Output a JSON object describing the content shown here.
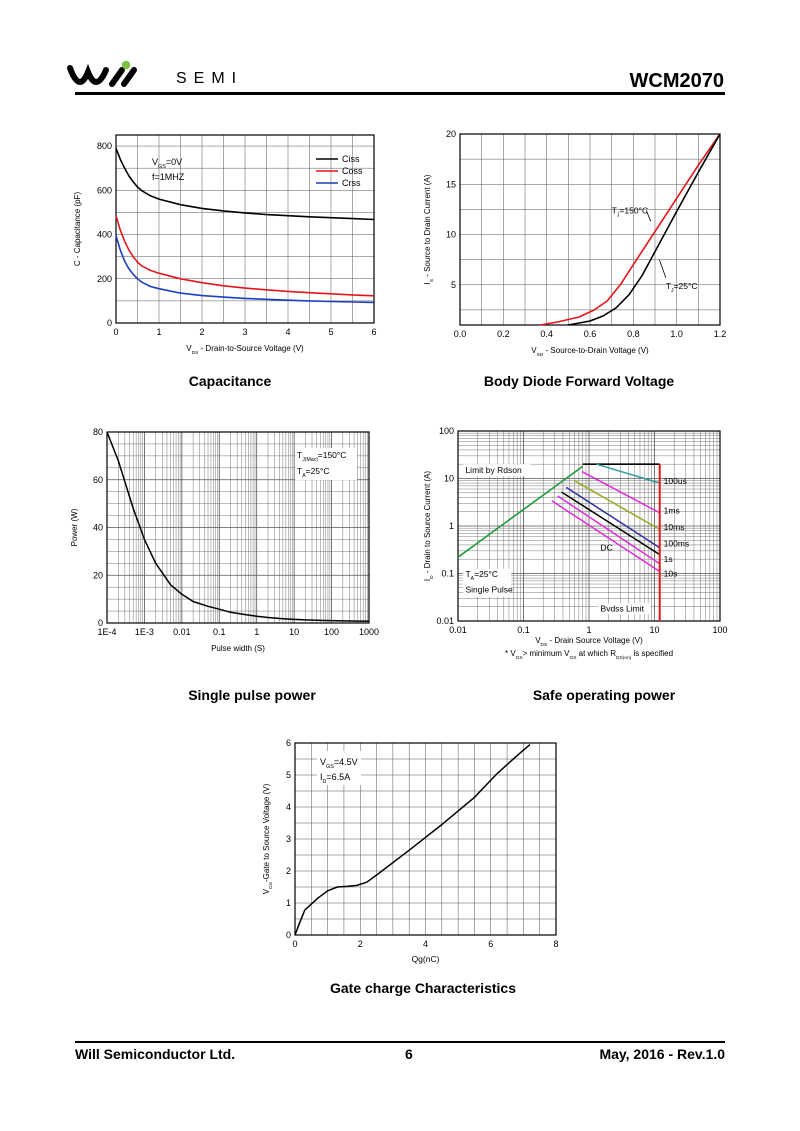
{
  "header": {
    "brand": "SEMI",
    "part_number": "WCM2070",
    "logo_color": "#7dc242"
  },
  "footer": {
    "company": "Will Semiconductor Ltd.",
    "page": "6",
    "date_rev": "May, 2016 - Rev.1.0"
  },
  "chart_data": [
    {
      "id": "capacitance",
      "type": "line",
      "title": "Capacitance",
      "xlabel": "V_DS - Drain-to-Source Voltage (V)",
      "ylabel": "C - Capacitance (pF)",
      "xlim": [
        0,
        6
      ],
      "ylim": [
        0,
        850
      ],
      "xticks": [
        0,
        1,
        2,
        3,
        4,
        5,
        6
      ],
      "yticks": [
        0,
        200,
        400,
        600,
        800
      ],
      "annotations": [
        "V_GS=0V",
        "f=1MHZ"
      ],
      "series": [
        {
          "name": "Ciss",
          "color": "#000000",
          "x": [
            0,
            0.1,
            0.2,
            0.3,
            0.4,
            0.5,
            0.6,
            0.8,
            1.0,
            1.5,
            2,
            2.5,
            3,
            3.5,
            4,
            4.5,
            5,
            5.5,
            6
          ],
          "y": [
            790,
            740,
            700,
            665,
            638,
            615,
            598,
            575,
            560,
            535,
            518,
            507,
            498,
            490,
            485,
            480,
            476,
            472,
            468
          ]
        },
        {
          "name": "Coss",
          "color": "#e4161b",
          "x": [
            0,
            0.1,
            0.2,
            0.3,
            0.4,
            0.5,
            0.6,
            0.8,
            1.0,
            1.5,
            2,
            2.5,
            3,
            3.5,
            4,
            4.5,
            5,
            5.5,
            6
          ],
          "y": [
            485,
            420,
            370,
            330,
            300,
            275,
            258,
            238,
            225,
            200,
            182,
            168,
            158,
            150,
            143,
            137,
            132,
            127,
            123
          ]
        },
        {
          "name": "Crss",
          "color": "#1c3fbd",
          "x": [
            0,
            0.1,
            0.2,
            0.3,
            0.4,
            0.5,
            0.6,
            0.8,
            1.0,
            1.5,
            2,
            2.5,
            3,
            3.5,
            4,
            4.5,
            5,
            5.5,
            6
          ],
          "y": [
            395,
            330,
            280,
            245,
            220,
            200,
            185,
            165,
            155,
            135,
            124,
            117,
            111,
            107,
            103,
            100,
            97,
            95,
            93
          ]
        }
      ]
    },
    {
      "id": "body-diode",
      "type": "line",
      "title": "Body Diode Forward Voltage",
      "xlabel": "V_SD - Source-to-Drain Voltage (V)",
      "ylabel": "I_S - Source to Drain Current (A)",
      "xlim": [
        0,
        1.2
      ],
      "ylim": [
        1,
        20
      ],
      "xticks": [
        0.0,
        0.2,
        0.4,
        0.6,
        0.8,
        1.0,
        1.2
      ],
      "yticks": [
        5,
        10,
        15,
        20
      ],
      "tick_labels_x": [
        "0.0",
        "0.2",
        "0.4",
        "0.6",
        "0.8",
        "1.0",
        "1.2"
      ],
      "series": [
        {
          "name": "T_J=150°C",
          "color": "#e4161b",
          "x": [
            0.37,
            0.45,
            0.55,
            0.62,
            0.68,
            0.74,
            0.8,
            0.9,
            1.0,
            1.1,
            1.2
          ],
          "y": [
            1.0,
            1.3,
            1.8,
            2.5,
            3.4,
            5.0,
            7.0,
            10.3,
            13.6,
            16.9,
            20.0
          ]
        },
        {
          "name": "T_J=25°C",
          "color": "#000000",
          "x": [
            0.5,
            0.6,
            0.66,
            0.72,
            0.78,
            0.84,
            0.9,
            1.0,
            1.1,
            1.2
          ],
          "y": [
            1.0,
            1.4,
            1.9,
            2.7,
            4.0,
            5.9,
            8.3,
            12.3,
            16.2,
            20.0
          ]
        }
      ]
    },
    {
      "id": "single-pulse",
      "type": "line",
      "title": "Single pulse power",
      "xlabel": "Pulse width (S)",
      "ylabel": "Power (W)",
      "xscale": "log",
      "xlim": [
        0.0001,
        1000
      ],
      "ylim": [
        0,
        80
      ],
      "xticks": [
        0.0001,
        0.001,
        0.01,
        0.1,
        1,
        10,
        100,
        1000
      ],
      "tick_labels_x": [
        "1E-4",
        "1E-3",
        "0.01",
        "0.1",
        "1",
        "10",
        "100",
        "1000"
      ],
      "yticks": [
        0,
        20,
        40,
        60,
        80
      ],
      "annotations": [
        "T_J(Max)=150°C",
        "T_A=25°C"
      ],
      "series": [
        {
          "name": "Power",
          "color": "#000000",
          "x": [
            0.0001,
            0.0002,
            0.0005,
            0.001,
            0.002,
            0.005,
            0.01,
            0.02,
            0.05,
            0.1,
            0.2,
            0.5,
            1,
            2,
            5,
            10,
            20,
            50,
            100,
            200,
            500,
            1000
          ],
          "y": [
            80,
            68,
            48,
            35,
            25,
            16,
            12,
            9,
            7,
            5.8,
            4.5,
            3.5,
            2.8,
            2.3,
            1.8,
            1.5,
            1.3,
            1.1,
            1.0,
            0.9,
            0.8,
            0.8
          ]
        }
      ]
    },
    {
      "id": "soa",
      "type": "line",
      "title": "Safe operating power",
      "xlabel": "V_DS - Drain Source Voltage (V)",
      "ylabel": "I_D - Drain to Source Current (A)",
      "xscale": "log",
      "yscale": "log",
      "xlim": [
        0.01,
        100
      ],
      "ylim": [
        0.01,
        100
      ],
      "xticks": [
        0.01,
        0.1,
        1,
        10,
        100
      ],
      "tick_labels_x": [
        "0.01",
        "0.1",
        "1",
        "10",
        "100"
      ],
      "yticks": [
        0.01,
        0.1,
        1,
        10,
        100
      ],
      "tick_labels_y": [
        "0.01",
        "0.1",
        "1",
        "10",
        "100"
      ],
      "annotations": [
        "Limit by Rdson",
        "T_A=25°C",
        "Single Pulse",
        "Bvdss Limit",
        "DC"
      ],
      "note": "* V_GS> minimum V_GS at which R_DS(on) is specified",
      "rdson_limit": {
        "color": "#1f9a3a",
        "x": [
          0.01,
          0.8
        ],
        "y": [
          0.22,
          18
        ]
      },
      "current_limit": {
        "x": [
          0.8,
          12
        ],
        "y": [
          20,
          20
        ]
      },
      "bvdss_limit": {
        "color": "#e4161b",
        "x": [
          12,
          12
        ],
        "y": [
          0.01,
          20
        ]
      },
      "series": [
        {
          "name": "100us",
          "color": "#2a9d9a",
          "x": [
            1.3,
            12
          ],
          "y": [
            20,
            8
          ]
        },
        {
          "name": "1ms",
          "color": "#e42ad9",
          "x": [
            0.78,
            12
          ],
          "y": [
            14,
            1.9
          ]
        },
        {
          "name": "10ms",
          "color": "#9aa61e",
          "x": [
            0.6,
            12
          ],
          "y": [
            9,
            0.85
          ]
        },
        {
          "name": "100ms",
          "color": "#2b2f9e",
          "x": [
            0.45,
            12
          ],
          "y": [
            6.5,
            0.35
          ]
        },
        {
          "name": "1s",
          "color": "#000000",
          "x": [
            0.38,
            12
          ],
          "y": [
            5.2,
            0.25
          ]
        },
        {
          "name": "10s",
          "color": "#e42ad9",
          "x": [
            0.33,
            12
          ],
          "y": [
            4.3,
            0.16
          ]
        },
        {
          "name": "DC",
          "color": "#e42ad9",
          "x": [
            0.27,
            12
          ],
          "y": [
            3.4,
            0.11
          ]
        }
      ]
    },
    {
      "id": "gate-charge",
      "type": "line",
      "title": "Gate charge Characteristics",
      "xlabel": "Qg(nC)",
      "ylabel": "V_GS-Gate to Source Voltage (V)",
      "xlim": [
        0,
        8
      ],
      "ylim": [
        0,
        6
      ],
      "xticks": [
        0,
        2,
        4,
        6,
        8
      ],
      "yticks": [
        0,
        1,
        2,
        3,
        4,
        5,
        6
      ],
      "annotations": [
        "V_GS=4.5V",
        "I_D=6.5A"
      ],
      "series": [
        {
          "name": "VGS",
          "color": "#000000",
          "x": [
            0,
            0.15,
            0.3,
            0.45,
            0.7,
            1.0,
            1.3,
            1.6,
            1.9,
            2.2,
            2.6,
            3.5,
            4.5,
            5.5,
            6.2,
            6.8,
            7.2
          ],
          "y": [
            0,
            0.4,
            0.78,
            0.92,
            1.15,
            1.38,
            1.5,
            1.52,
            1.55,
            1.65,
            1.95,
            2.65,
            3.45,
            4.3,
            5.05,
            5.6,
            5.95
          ]
        }
      ]
    }
  ]
}
